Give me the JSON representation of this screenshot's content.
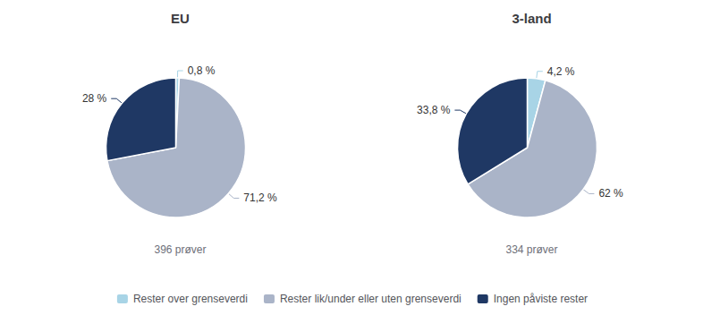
{
  "chart_data": [
    {
      "type": "pie",
      "title": "EU",
      "subtitle": "396 prøver",
      "categories": [
        "Rester over grenseverdi",
        "Rester lik/under eller uten grenseverdi",
        "Ingen påviste rester"
      ],
      "values": [
        0.8,
        71.2,
        28.0
      ],
      "value_labels": [
        "0,8 %",
        "71,2 %",
        "28 %"
      ],
      "colors": [
        "#A8D4E6",
        "#AAB4C8",
        "#1F3864"
      ],
      "data_labels": true,
      "legend": "bottom"
    },
    {
      "type": "pie",
      "title": "3-land",
      "subtitle": "334 prøver",
      "categories": [
        "Rester over grenseverdi",
        "Rester lik/under eller uten grenseverdi",
        "Ingen påviste rester"
      ],
      "values": [
        4.2,
        62.0,
        33.8
      ],
      "value_labels": [
        "4,2 %",
        "62 %",
        "33,8 %"
      ],
      "colors": [
        "#A8D4E6",
        "#AAB4C8",
        "#1F3864"
      ],
      "data_labels": true,
      "legend": "bottom"
    }
  ]
}
